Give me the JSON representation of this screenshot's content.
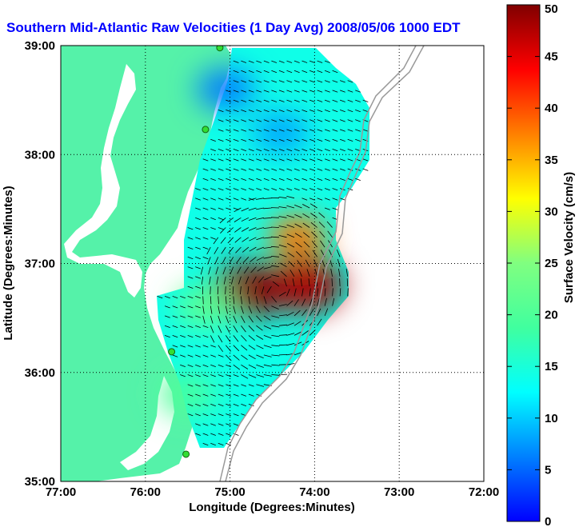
{
  "chart_data": {
    "type": "heatmap",
    "title": "Southern Mid-Atlantic Raw Velocities (1 Day Avg) 2008/05/06 1000 EDT",
    "xlabel": "Longitude (Degrees:Minutes)",
    "ylabel": "Latitude (Degrees:Minutes)",
    "colorbar_label": "Surface Velocity (cm/s)",
    "x_ticks": [
      "77:00",
      "76:00",
      "75:00",
      "74:00",
      "73:00",
      "72:00"
    ],
    "y_ticks": [
      "39:00",
      "38:00",
      "37:00",
      "36:00",
      "35:00"
    ],
    "colorbar_ticks": [
      "0",
      "5",
      "10",
      "15",
      "20",
      "25",
      "30",
      "35",
      "40",
      "45",
      "50"
    ],
    "xlim": [
      -77,
      -72
    ],
    "ylim": [
      35,
      39
    ],
    "clim": [
      0,
      50
    ],
    "grid": true,
    "colormap": "jet",
    "land_color": "#55f2a9",
    "title_color": "#0000ff",
    "stations": [
      {
        "lon": -75.12,
        "lat": 38.98
      },
      {
        "lon": -75.29,
        "lat": 38.23
      },
      {
        "lon": -75.69,
        "lat": 36.19
      },
      {
        "lon": -75.52,
        "lat": 35.25
      }
    ],
    "hotspots": [
      {
        "lon": -74.8,
        "lat": 36.75,
        "speed": 50
      },
      {
        "lon": -74.1,
        "lat": 36.8,
        "speed": 48
      },
      {
        "lon": -74.2,
        "lat": 37.25,
        "speed": 38
      },
      {
        "lon": -75.3,
        "lat": 36.6,
        "speed": 22
      },
      {
        "lon": -75.5,
        "lat": 35.8,
        "speed": 20
      },
      {
        "lon": -75.05,
        "lat": 38.6,
        "speed": 6
      },
      {
        "lon": -74.4,
        "lat": 38.2,
        "speed": 8
      }
    ]
  }
}
